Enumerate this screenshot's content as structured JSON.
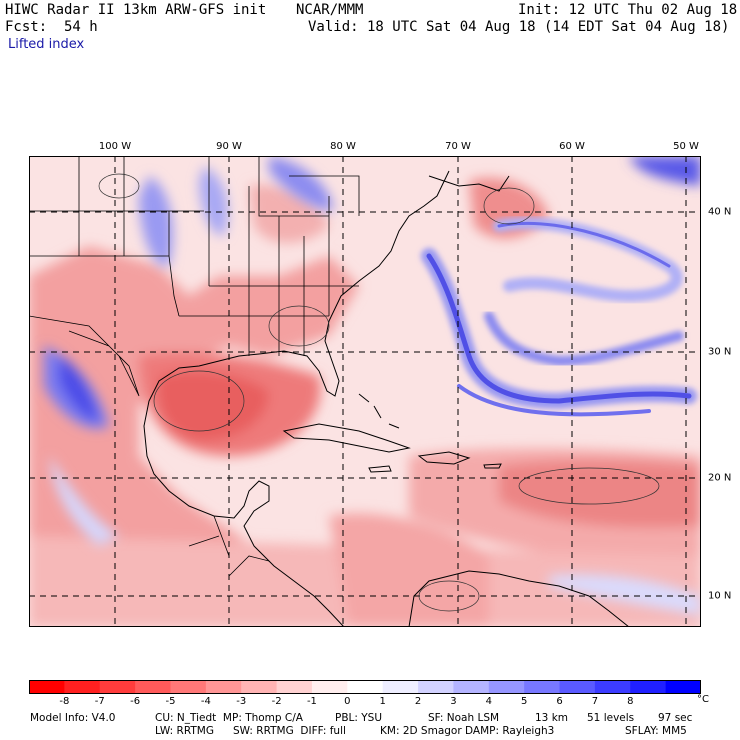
{
  "header": {
    "model": "HIWC Radar II 13km ARW-GFS init",
    "org": "NCAR/MMM",
    "init": "Init: 12 UTC Thu 02 Aug 18",
    "fcst_label": "Fcst:",
    "fcst_value": "54 h",
    "valid": "Valid: 18 UTC Sat 04 Aug 18 (14 EDT Sat 04 Aug 18)",
    "field": "Lifted index"
  },
  "map": {
    "lon_labels": [
      "100 W",
      "90 W",
      "80 W",
      "70 W",
      "60 W",
      "50 W"
    ],
    "lat_labels": [
      "40 N",
      "30 N",
      "20 N",
      "10 N"
    ],
    "land_color": "#f29a9a",
    "ocean_color": "#fadada"
  },
  "colorbar": {
    "ticks": [
      "-8",
      "-7",
      "-6",
      "-5",
      "-4",
      "-3",
      "-2",
      "-1",
      "0",
      "1",
      "2",
      "3",
      "4",
      "5",
      "6",
      "7",
      "8"
    ],
    "unit": "°C",
    "colors": [
      "#ff0000",
      "#ff2020",
      "#ff3c3c",
      "#ff5a5a",
      "#ff7878",
      "#ff9696",
      "#ffb4b4",
      "#ffd2d2",
      "#ffeeee",
      "#ffffff",
      "#eeeeff",
      "#d2d2ff",
      "#b4b4ff",
      "#9696ff",
      "#7878ff",
      "#5a5aff",
      "#3c3cff",
      "#2020ff",
      "#0000ff"
    ]
  },
  "footer": {
    "line1_a": "Model Info: V4.0",
    "line1_b": "CU: N_Tiedt  MP: Thomp C/A",
    "line1_c": "PBL: YSU",
    "line1_d": "SF: Noah LSM",
    "line1_e": "13 km",
    "line1_f": "51 levels",
    "line1_g": "97 sec",
    "line2_a": "LW: RRTMG",
    "line2_b": "SW: RRTMG  DIFF: full",
    "line2_c": "KM: 2D Smagor DAMP: Rayleigh3",
    "line2_d": "SFLAY: MM5"
  }
}
